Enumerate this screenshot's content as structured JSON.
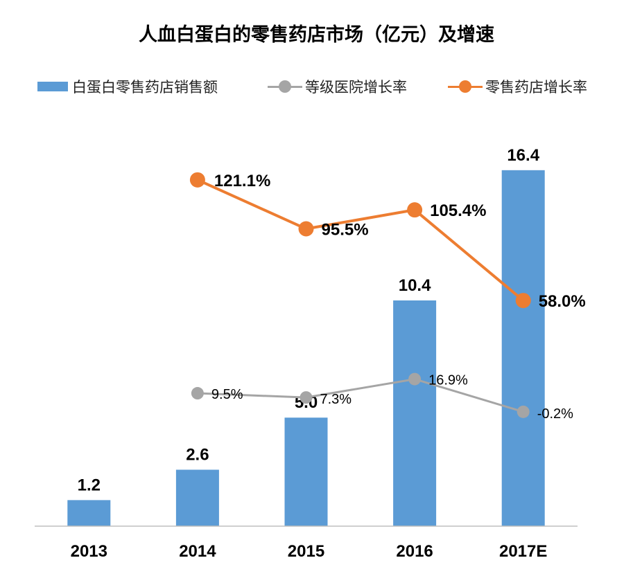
{
  "colors": {
    "bars": "#5b9bd5",
    "hospital_line": "#a5a5a5",
    "retail_line": "#ed7d31",
    "axis": "#bfbfbf",
    "text": "#000000"
  },
  "chart_data": {
    "type": "bar",
    "title": "人血白蛋白的零售药店市场（亿元）及增速",
    "categories": [
      "2013",
      "2014",
      "2015",
      "2016",
      "2017E"
    ],
    "series": [
      {
        "name": "白蛋白零售药店销售额",
        "kind": "bar",
        "axis": "left",
        "values": [
          1.2,
          2.6,
          5.0,
          10.4,
          16.4
        ],
        "labels": [
          "1.2",
          "2.6",
          "5.0",
          "10.4",
          "16.4"
        ]
      },
      {
        "name": "等级医院增长率",
        "kind": "line",
        "axis": "right",
        "values": [
          null,
          9.5,
          7.3,
          16.9,
          -0.2
        ],
        "labels": [
          null,
          "9.5%",
          "7.3%",
          "16.9%",
          "-0.2%"
        ]
      },
      {
        "name": "零售药店增长率",
        "kind": "line",
        "axis": "right",
        "values": [
          null,
          121.1,
          95.5,
          105.4,
          58.0
        ],
        "labels": [
          null,
          "121.1%",
          "95.5%",
          "105.4%",
          "58.0%"
        ]
      }
    ],
    "ylim_left": [
      0,
      18.5
    ],
    "ylim_right": [
      -60,
      150
    ],
    "legend": "top",
    "grid": false
  }
}
